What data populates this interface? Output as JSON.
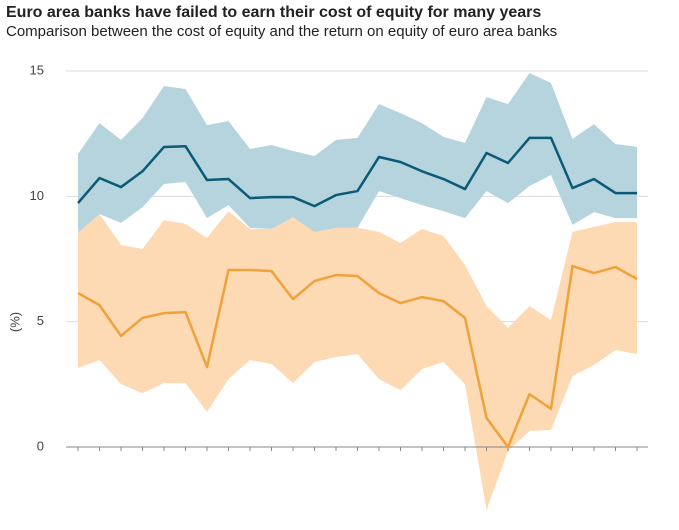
{
  "chart_data": {
    "type": "band-line",
    "title": "Euro area banks have failed to earn their cost of equity for many years",
    "subtitle": "Comparison between the cost of equity and the return on equity of euro area banks",
    "y_label": "(%)",
    "categories": [
      null,
      null,
      null,
      null,
      null,
      null,
      null,
      null,
      null,
      null,
      null,
      null,
      null,
      null,
      null,
      null,
      null,
      null,
      null,
      null,
      null,
      null,
      null,
      null,
      null,
      null,
      null
    ],
    "ylim": [
      0,
      15
    ],
    "yticks": [
      0,
      5,
      10,
      15
    ],
    "grid": true,
    "series": [
      {
        "color": "#0b5a78",
        "band_color": "#b5d4dd",
        "values": [
          9.73,
          10.73,
          10.37,
          11.0,
          11.97,
          12.0,
          10.65,
          10.69,
          9.93,
          9.97,
          9.97,
          9.61,
          10.05,
          10.21,
          11.57,
          11.37,
          11.0,
          10.69,
          10.29,
          11.73,
          11.33,
          12.33,
          12.33,
          10.33,
          10.69,
          10.13,
          10.13
        ],
        "high": [
          11.69,
          12.92,
          12.25,
          13.12,
          14.4,
          14.28,
          12.84,
          13.0,
          11.89,
          12.05,
          11.81,
          11.61,
          12.25,
          12.33,
          13.68,
          13.32,
          12.92,
          12.37,
          12.13,
          13.96,
          13.68,
          14.92,
          14.52,
          12.29,
          12.88,
          12.09,
          11.97
        ],
        "low": [
          8.54,
          9.29,
          8.94,
          9.57,
          10.49,
          10.57,
          9.13,
          9.65,
          8.74,
          8.7,
          9.13,
          8.3,
          8.74,
          8.74,
          10.21,
          9.93,
          9.65,
          9.41,
          9.13,
          10.21,
          9.73,
          10.41,
          10.85,
          8.86,
          9.37,
          9.13,
          9.13
        ]
      },
      {
        "color": "#f0a23a",
        "band_color": "#fdd9b4",
        "values": [
          6.14,
          5.66,
          4.43,
          5.15,
          5.34,
          5.38,
          3.19,
          7.06,
          7.06,
          7.02,
          5.9,
          6.62,
          6.86,
          6.82,
          6.14,
          5.74,
          5.98,
          5.82,
          5.15,
          1.16,
          0,
          2.11,
          1.52,
          7.22,
          6.94,
          7.18,
          6.7
        ],
        "high": [
          8.54,
          9.29,
          8.06,
          7.9,
          9.05,
          8.9,
          8.34,
          9.41,
          8.7,
          8.7,
          9.17,
          8.58,
          8.74,
          8.74,
          8.58,
          8.14,
          8.7,
          8.42,
          7.26,
          5.62,
          4.75,
          5.62,
          5.07,
          8.58,
          8.78,
          8.97,
          8.97
        ],
        "low": [
          3.15,
          3.47,
          2.51,
          2.15,
          2.55,
          2.55,
          1.4,
          2.71,
          3.47,
          3.31,
          2.55,
          3.39,
          3.59,
          3.71,
          2.71,
          2.27,
          3.11,
          3.39,
          2.51,
          -2.51,
          -0.16,
          0.64,
          0.68,
          2.83,
          3.27,
          3.87,
          3.71
        ]
      }
    ]
  }
}
